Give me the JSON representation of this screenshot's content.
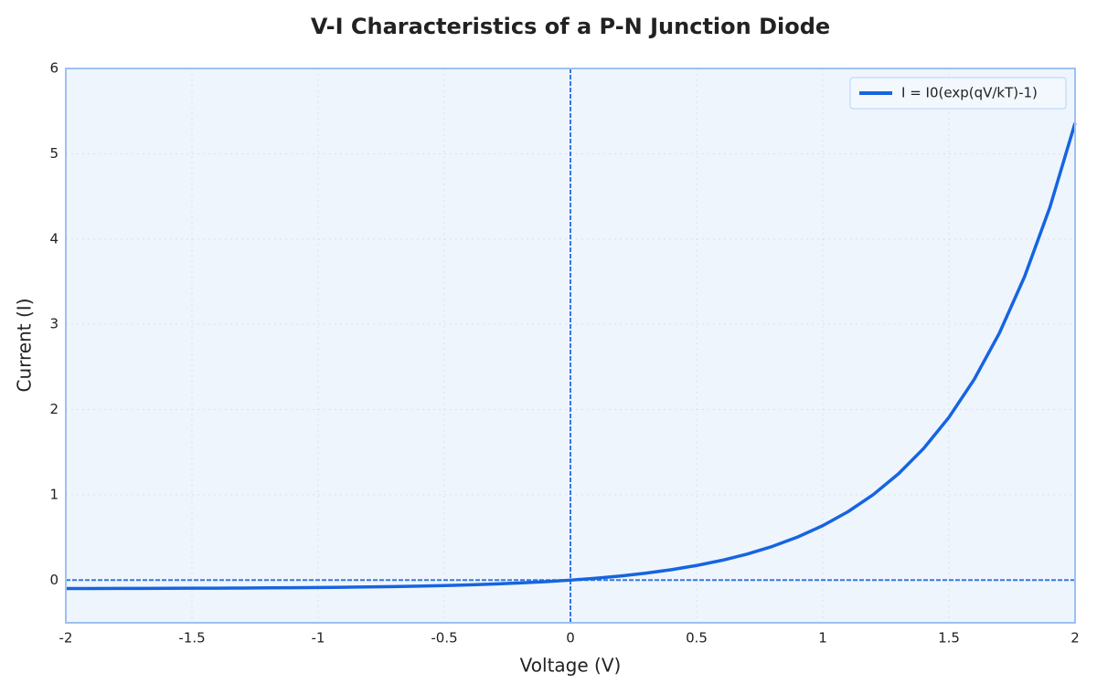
{
  "chart_data": {
    "type": "line",
    "title": "V-I Characteristics of a P-N Junction Diode",
    "x_label": "Voltage (V)",
    "y_label": "Current (I)",
    "x": [
      -2,
      -1.9,
      -1.8,
      -1.7,
      -1.6,
      -1.5,
      -1.4,
      -1.3,
      -1.2,
      -1.1,
      -1,
      -0.9,
      -0.8,
      -0.7,
      -0.6,
      -0.5,
      -0.4,
      -0.3,
      -0.2,
      -0.1,
      0,
      0.1,
      0.2,
      0.3,
      0.4,
      0.5,
      0.6,
      0.7,
      0.8,
      0.9,
      1,
      1.1,
      1.2,
      1.3,
      1.4,
      1.5,
      1.6,
      1.7,
      1.8,
      1.9,
      2
    ],
    "series": [
      {
        "name": "I = I0(exp(qV/kT)-1)",
        "color": "#1664e0",
        "values": [
          -0.0982,
          -0.0978,
          -0.0973,
          -0.0967,
          -0.0959,
          -0.095,
          -0.0939,
          -0.0926,
          -0.0909,
          -0.0889,
          -0.0865,
          -0.0835,
          -0.0798,
          -0.0753,
          -0.0699,
          -0.0632,
          -0.0551,
          -0.0451,
          -0.033,
          -0.0181,
          0,
          0.0221,
          0.0492,
          0.0822,
          0.1226,
          0.1718,
          0.232,
          0.3055,
          0.3953,
          0.505,
          0.6389,
          0.8025,
          1.0023,
          1.2464,
          1.5445,
          1.9086,
          2.3533,
          2.8964,
          3.5598,
          4.3701,
          5.3598
        ]
      }
    ],
    "xlim": [
      -2,
      2
    ],
    "ylim": [
      -0.5,
      6
    ],
    "xticks": [
      -2,
      -1.5,
      -1,
      -0.5,
      0,
      0.5,
      1,
      1.5,
      2
    ],
    "yticks": [
      0,
      1,
      2,
      3,
      4,
      5,
      6
    ],
    "hlines": [
      0
    ],
    "vlines": [
      0
    ],
    "grid": true,
    "legend": "upper-right"
  }
}
